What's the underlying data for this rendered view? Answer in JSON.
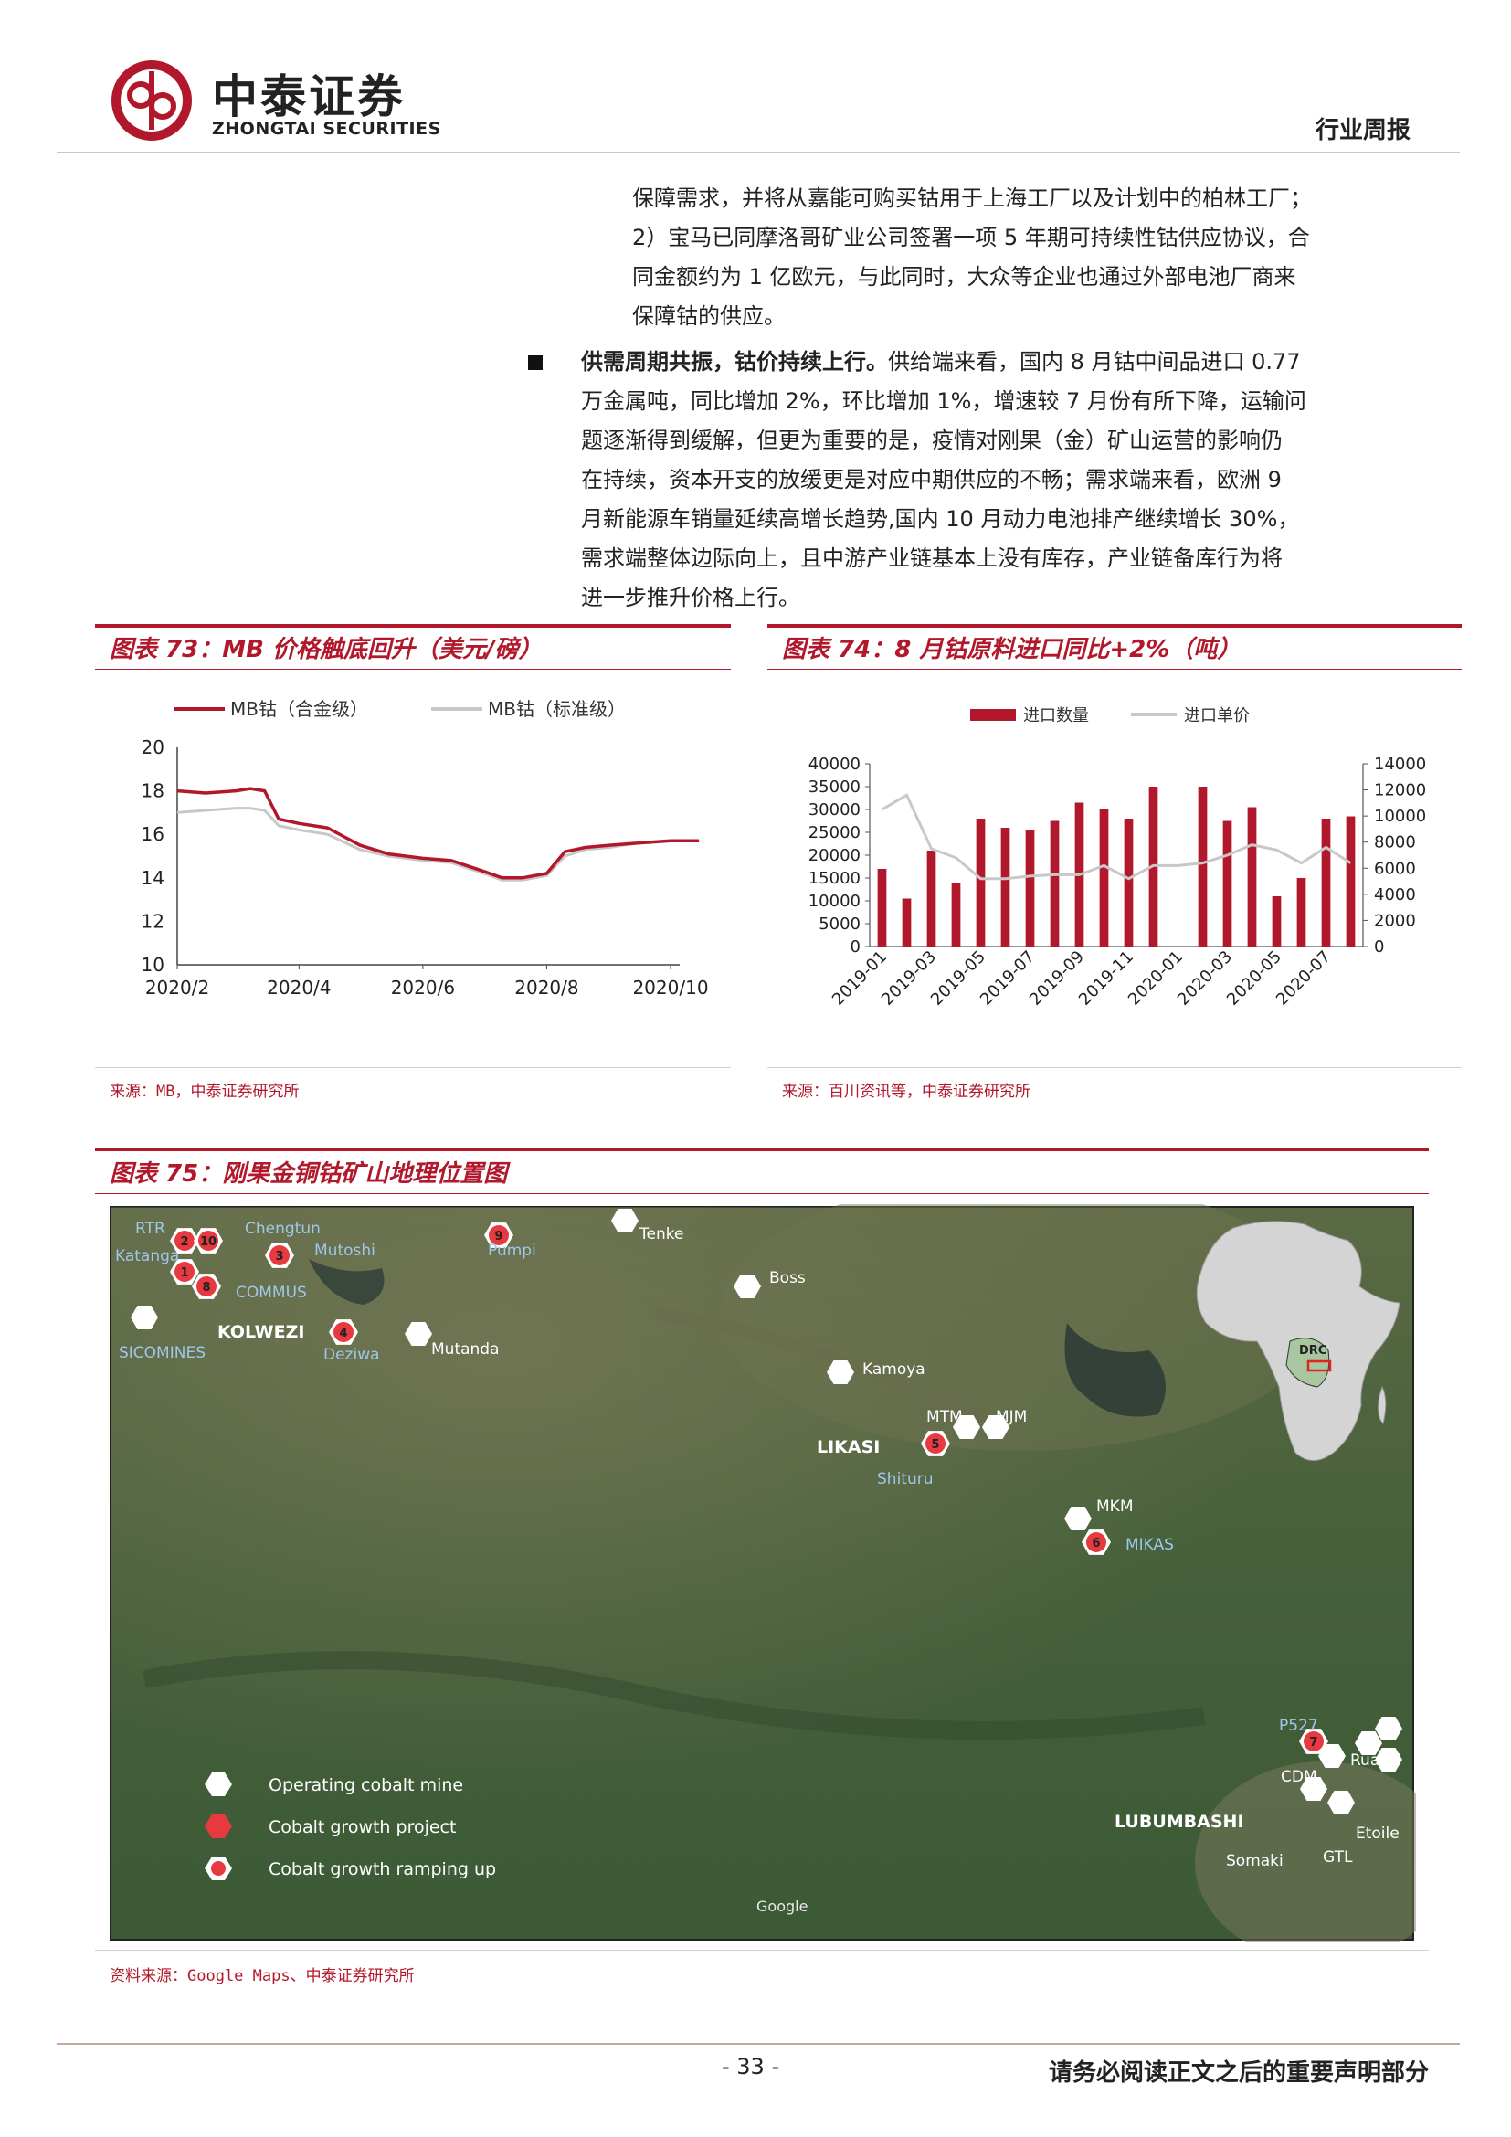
{
  "header": {
    "logo_cn": "中泰证券",
    "logo_en": "ZHONGTAI SECURITIES",
    "report_type": "行业周报",
    "brand_color": "#b2182b"
  },
  "body": {
    "para1_lines": [
      "保障需求，并将从嘉能可购买钴用于上海工厂以及计划中的柏林工厂；",
      "2）宝马已同摩洛哥矿业公司签署一项 5 年期可持续性钴供应协议，合",
      "同金额约为 1 亿欧元，与此同时，大众等企业也通过外部电池厂商来",
      "保障钴的供应。"
    ],
    "bullet_bold": "供需周期共振，钴价持续上行。",
    "bullet_first_rest": "供给端来看，国内 8 月钴中间品进口 0.77",
    "bullet_lines": [
      "万金属吨，同比增加 2%，环比增加 1%，增速较 7 月份有所下降，运输问",
      "题逐渐得到缓解，但更为重要的是，疫情对刚果（金）矿山运营的影响仍",
      "在持续，资本开支的放缓更是对应中期供应的不畅；需求端来看，欧洲 9",
      "月新能源车销量延续高增长趋势,国内 10 月动力电池排产继续增长 30%，",
      "需求端整体边际向上，且中游产业链基本上没有库存，产业链备库行为将",
      "进一步推升价格上行。"
    ]
  },
  "fig73": {
    "title": "图表 73：MB 价格触底回升（美元/磅）",
    "source": "来源：MB，中泰证券研究所"
  },
  "fig74": {
    "title": "图表 74：8 月钴原料进口同比+2%（吨）",
    "source": "来源：百川资讯等，中泰证券研究所"
  },
  "fig75": {
    "title": "图表 75：刚果金铜钴矿山地理位置图",
    "source": "资料来源：Google Maps、中泰证券研究所",
    "legend": [
      "Operating cobalt mine",
      "Cobalt growth project",
      "Cobalt growth ramping up"
    ],
    "inset_label": "DRC",
    "google": "Google",
    "cities": [
      "KOLWEZI",
      "LIKASI",
      "LUBUMBASHI"
    ],
    "mine_labels": [
      "RTR",
      "Chengtun",
      "Katanga",
      "Mutoshi",
      "COMMUS",
      "SICOMINES",
      "Deziwa",
      "Mutanda",
      "Pumpi",
      "Tenke",
      "Boss",
      "Kamoya",
      "MTM",
      "MJM",
      "Shituru",
      "MKM",
      "MIKAS",
      "P527",
      "Ruashi",
      "CDM",
      "Etoile",
      "Somaki",
      "GTL"
    ]
  },
  "footer": {
    "page": "- 33 -",
    "disclaimer": "请务必阅读正文之后的重要声明部分"
  },
  "chart_data": [
    {
      "type": "line",
      "title": "图表 73：MB 价格触底回升（美元/磅）",
      "x_ticks": [
        "2020/2",
        "2020/4",
        "2020/6",
        "2020/8",
        "2020/10"
      ],
      "ylim": [
        10,
        20
      ],
      "y_ticks": [
        10,
        12,
        14,
        16,
        18,
        20
      ],
      "legend_position": "top",
      "series": [
        {
          "name": "MB钴（合金级）",
          "color": "#b2182b",
          "x": [
            "2020/2/1",
            "2020/2/15",
            "2020/3/1",
            "2020/3/8",
            "2020/3/15",
            "2020/3/22",
            "2020/4/1",
            "2020/4/15",
            "2020/5/1",
            "2020/5/15",
            "2020/6/1",
            "2020/6/15",
            "2020/7/1",
            "2020/7/10",
            "2020/7/20",
            "2020/8/1",
            "2020/8/10",
            "2020/8/20",
            "2020/9/1",
            "2020/9/15",
            "2020/10/1",
            "2020/10/15"
          ],
          "y": [
            18.0,
            17.9,
            18.0,
            18.1,
            18.0,
            16.7,
            16.5,
            16.3,
            15.5,
            15.1,
            14.9,
            14.8,
            14.3,
            14.0,
            14.0,
            14.2,
            15.2,
            15.4,
            15.5,
            15.6,
            15.7,
            15.7
          ]
        },
        {
          "name": "MB钴（标准级）",
          "color": "#c8c8c8",
          "x": [
            "2020/2/1",
            "2020/2/15",
            "2020/3/1",
            "2020/3/8",
            "2020/3/15",
            "2020/3/22",
            "2020/4/1",
            "2020/4/15",
            "2020/5/1",
            "2020/5/15",
            "2020/6/1",
            "2020/6/15",
            "2020/7/1",
            "2020/7/10",
            "2020/7/20",
            "2020/8/1",
            "2020/8/10",
            "2020/8/20",
            "2020/9/1",
            "2020/9/15",
            "2020/10/1",
            "2020/10/15"
          ],
          "y": [
            17.0,
            17.1,
            17.2,
            17.2,
            17.1,
            16.4,
            16.2,
            16.0,
            15.3,
            15.0,
            14.8,
            14.7,
            14.2,
            13.9,
            13.9,
            14.1,
            15.0,
            15.3,
            15.4,
            15.6,
            15.7,
            15.7
          ]
        }
      ]
    },
    {
      "type": "bar",
      "title": "图表 74：8 月钴原料进口同比+2%（吨）",
      "categories": [
        "2019-01",
        "2019-02",
        "2019-03",
        "2019-04",
        "2019-05",
        "2019-06",
        "2019-07",
        "2019-08",
        "2019-09",
        "2019-10",
        "2019-11",
        "2019-12",
        "2020-01",
        "2020-02",
        "2020-03",
        "2020-04",
        "2020-05",
        "2020-06",
        "2020-07",
        "2020-08"
      ],
      "x_tick_labels": [
        "2019-01",
        "2019-03",
        "2019-05",
        "2019-07",
        "2019-09",
        "2019-11",
        "2020-01",
        "2020-03",
        "2020-05",
        "2020-07"
      ],
      "legend_position": "top",
      "y_left": {
        "lim": [
          0,
          40000
        ],
        "ticks": [
          0,
          5000,
          10000,
          15000,
          20000,
          25000,
          30000,
          35000,
          40000
        ]
      },
      "y_right": {
        "lim": [
          0,
          14000
        ],
        "ticks": [
          0,
          2000,
          4000,
          6000,
          8000,
          10000,
          12000,
          14000
        ]
      },
      "series": [
        {
          "name": "进口数量",
          "color": "#b2182b",
          "axis": "left",
          "values": [
            17000,
            10500,
            21000,
            14000,
            28000,
            26000,
            25500,
            27500,
            31500,
            30000,
            28000,
            35000,
            null,
            35000,
            27500,
            30500,
            11000,
            15000,
            28000,
            28500
          ]
        },
        {
          "name": "进口单价",
          "color": "#c8c8c8",
          "axis": "right",
          "values": [
            10500,
            11600,
            7500,
            6800,
            5200,
            5200,
            5400,
            5500,
            5500,
            6200,
            5200,
            6200,
            6200,
            6400,
            7000,
            7800,
            7400,
            6400,
            7600,
            6400
          ]
        }
      ]
    }
  ]
}
